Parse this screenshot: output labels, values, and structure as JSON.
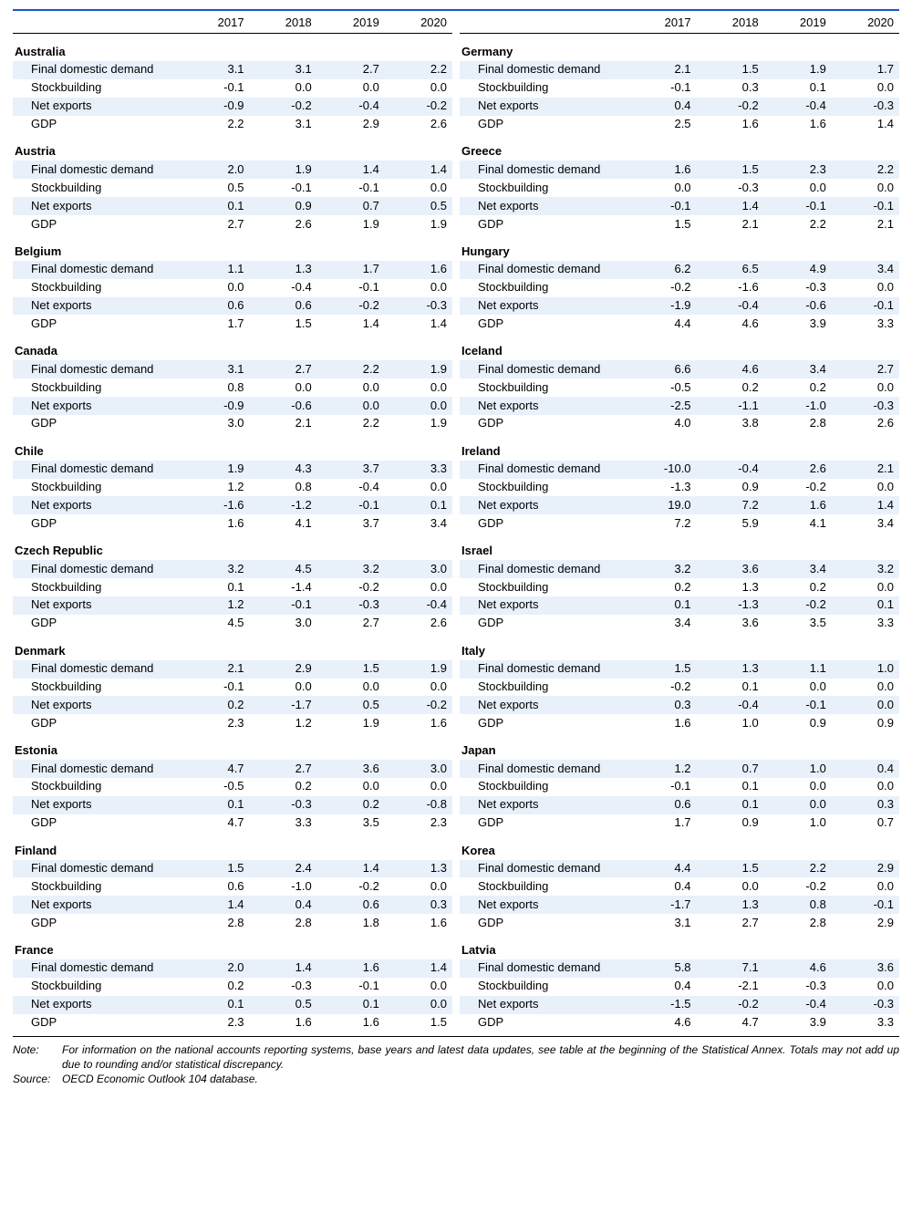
{
  "years": [
    "2017",
    "2018",
    "2019",
    "2020"
  ],
  "metrics": [
    "Final domestic demand",
    "Stockbuilding",
    "Net exports",
    "GDP"
  ],
  "shaded_metric_indices": [
    0,
    2
  ],
  "left_countries": [
    {
      "name": "Australia",
      "rows": [
        [
          "3.1",
          "3.1",
          "2.7",
          "2.2"
        ],
        [
          "-0.1",
          "0.0",
          "0.0",
          "0.0"
        ],
        [
          "-0.9",
          "-0.2",
          "-0.4",
          "-0.2"
        ],
        [
          "2.2",
          "3.1",
          "2.9",
          "2.6"
        ]
      ]
    },
    {
      "name": "Austria",
      "rows": [
        [
          "2.0",
          "1.9",
          "1.4",
          "1.4"
        ],
        [
          "0.5",
          "-0.1",
          "-0.1",
          "0.0"
        ],
        [
          "0.1",
          "0.9",
          "0.7",
          "0.5"
        ],
        [
          "2.7",
          "2.6",
          "1.9",
          "1.9"
        ]
      ]
    },
    {
      "name": "Belgium",
      "rows": [
        [
          "1.1",
          "1.3",
          "1.7",
          "1.6"
        ],
        [
          "0.0",
          "-0.4",
          "-0.1",
          "0.0"
        ],
        [
          "0.6",
          "0.6",
          "-0.2",
          "-0.3"
        ],
        [
          "1.7",
          "1.5",
          "1.4",
          "1.4"
        ]
      ]
    },
    {
      "name": "Canada",
      "rows": [
        [
          "3.1",
          "2.7",
          "2.2",
          "1.9"
        ],
        [
          "0.8",
          "0.0",
          "0.0",
          "0.0"
        ],
        [
          "-0.9",
          "-0.6",
          "0.0",
          "0.0"
        ],
        [
          "3.0",
          "2.1",
          "2.2",
          "1.9"
        ]
      ]
    },
    {
      "name": "Chile",
      "rows": [
        [
          "1.9",
          "4.3",
          "3.7",
          "3.3"
        ],
        [
          "1.2",
          "0.8",
          "-0.4",
          "0.0"
        ],
        [
          "-1.6",
          "-1.2",
          "-0.1",
          "0.1"
        ],
        [
          "1.6",
          "4.1",
          "3.7",
          "3.4"
        ]
      ]
    },
    {
      "name": "Czech Republic",
      "rows": [
        [
          "3.2",
          "4.5",
          "3.2",
          "3.0"
        ],
        [
          "0.1",
          "-1.4",
          "-0.2",
          "0.0"
        ],
        [
          "1.2",
          "-0.1",
          "-0.3",
          "-0.4"
        ],
        [
          "4.5",
          "3.0",
          "2.7",
          "2.6"
        ]
      ]
    },
    {
      "name": "Denmark",
      "rows": [
        [
          "2.1",
          "2.9",
          "1.5",
          "1.9"
        ],
        [
          "-0.1",
          "0.0",
          "0.0",
          "0.0"
        ],
        [
          "0.2",
          "-1.7",
          "0.5",
          "-0.2"
        ],
        [
          "2.3",
          "1.2",
          "1.9",
          "1.6"
        ]
      ]
    },
    {
      "name": "Estonia",
      "rows": [
        [
          "4.7",
          "2.7",
          "3.6",
          "3.0"
        ],
        [
          "-0.5",
          "0.2",
          "0.0",
          "0.0"
        ],
        [
          "0.1",
          "-0.3",
          "0.2",
          "-0.8"
        ],
        [
          "4.7",
          "3.3",
          "3.5",
          "2.3"
        ]
      ]
    },
    {
      "name": "Finland",
      "rows": [
        [
          "1.5",
          "2.4",
          "1.4",
          "1.3"
        ],
        [
          "0.6",
          "-1.0",
          "-0.2",
          "0.0"
        ],
        [
          "1.4",
          "0.4",
          "0.6",
          "0.3"
        ],
        [
          "2.8",
          "2.8",
          "1.8",
          "1.6"
        ]
      ]
    },
    {
      "name": "France",
      "rows": [
        [
          "2.0",
          "1.4",
          "1.6",
          "1.4"
        ],
        [
          "0.2",
          "-0.3",
          "-0.1",
          "0.0"
        ],
        [
          "0.1",
          "0.5",
          "0.1",
          "0.0"
        ],
        [
          "2.3",
          "1.6",
          "1.6",
          "1.5"
        ]
      ]
    }
  ],
  "right_countries": [
    {
      "name": "Germany",
      "rows": [
        [
          "2.1",
          "1.5",
          "1.9",
          "1.7"
        ],
        [
          "-0.1",
          "0.3",
          "0.1",
          "0.0"
        ],
        [
          "0.4",
          "-0.2",
          "-0.4",
          "-0.3"
        ],
        [
          "2.5",
          "1.6",
          "1.6",
          "1.4"
        ]
      ]
    },
    {
      "name": "Greece",
      "rows": [
        [
          "1.6",
          "1.5",
          "2.3",
          "2.2"
        ],
        [
          "0.0",
          "-0.3",
          "0.0",
          "0.0"
        ],
        [
          "-0.1",
          "1.4",
          "-0.1",
          "-0.1"
        ],
        [
          "1.5",
          "2.1",
          "2.2",
          "2.1"
        ]
      ]
    },
    {
      "name": "Hungary",
      "rows": [
        [
          "6.2",
          "6.5",
          "4.9",
          "3.4"
        ],
        [
          "-0.2",
          "-1.6",
          "-0.3",
          "0.0"
        ],
        [
          "-1.9",
          "-0.4",
          "-0.6",
          "-0.1"
        ],
        [
          "4.4",
          "4.6",
          "3.9",
          "3.3"
        ]
      ]
    },
    {
      "name": "Iceland",
      "rows": [
        [
          "6.6",
          "4.6",
          "3.4",
          "2.7"
        ],
        [
          "-0.5",
          "0.2",
          "0.2",
          "0.0"
        ],
        [
          "-2.5",
          "-1.1",
          "-1.0",
          "-0.3"
        ],
        [
          "4.0",
          "3.8",
          "2.8",
          "2.6"
        ]
      ]
    },
    {
      "name": "Ireland",
      "rows": [
        [
          "-10.0",
          "-0.4",
          "2.6",
          "2.1"
        ],
        [
          "-1.3",
          "0.9",
          "-0.2",
          "0.0"
        ],
        [
          "19.0",
          "7.2",
          "1.6",
          "1.4"
        ],
        [
          "7.2",
          "5.9",
          "4.1",
          "3.4"
        ]
      ]
    },
    {
      "name": "Israel",
      "rows": [
        [
          "3.2",
          "3.6",
          "3.4",
          "3.2"
        ],
        [
          "0.2",
          "1.3",
          "0.2",
          "0.0"
        ],
        [
          "0.1",
          "-1.3",
          "-0.2",
          "0.1"
        ],
        [
          "3.4",
          "3.6",
          "3.5",
          "3.3"
        ]
      ]
    },
    {
      "name": "Italy",
      "rows": [
        [
          "1.5",
          "1.3",
          "1.1",
          "1.0"
        ],
        [
          "-0.2",
          "0.1",
          "0.0",
          "0.0"
        ],
        [
          "0.3",
          "-0.4",
          "-0.1",
          "0.0"
        ],
        [
          "1.6",
          "1.0",
          "0.9",
          "0.9"
        ]
      ]
    },
    {
      "name": "Japan",
      "rows": [
        [
          "1.2",
          "0.7",
          "1.0",
          "0.4"
        ],
        [
          "-0.1",
          "0.1",
          "0.0",
          "0.0"
        ],
        [
          "0.6",
          "0.1",
          "0.0",
          "0.3"
        ],
        [
          "1.7",
          "0.9",
          "1.0",
          "0.7"
        ]
      ]
    },
    {
      "name": "Korea",
      "rows": [
        [
          "4.4",
          "1.5",
          "2.2",
          "2.9"
        ],
        [
          "0.4",
          "0.0",
          "-0.2",
          "0.0"
        ],
        [
          "-1.7",
          "1.3",
          "0.8",
          "-0.1"
        ],
        [
          "3.1",
          "2.7",
          "2.8",
          "2.9"
        ]
      ]
    },
    {
      "name": "Latvia",
      "rows": [
        [
          "5.8",
          "7.1",
          "4.6",
          "3.6"
        ],
        [
          "0.4",
          "-2.1",
          "-0.3",
          "0.0"
        ],
        [
          "-1.5",
          "-0.2",
          "-0.4",
          "-0.3"
        ],
        [
          "4.6",
          "4.7",
          "3.9",
          "3.3"
        ]
      ]
    }
  ],
  "note_label": "Note:",
  "note_text": "For information on the national accounts reporting systems, base years and latest data updates, see table at the beginning of the Statistical Annex. Totals may not add up due to rounding and/or statistical discrepancy.",
  "source_label": "Source:",
  "source_text": "OECD Economic Outlook 104 database.",
  "colors": {
    "rule": "#1a57c4",
    "shade": "#e8f0fa",
    "text": "#000000",
    "bg": "#ffffff"
  }
}
